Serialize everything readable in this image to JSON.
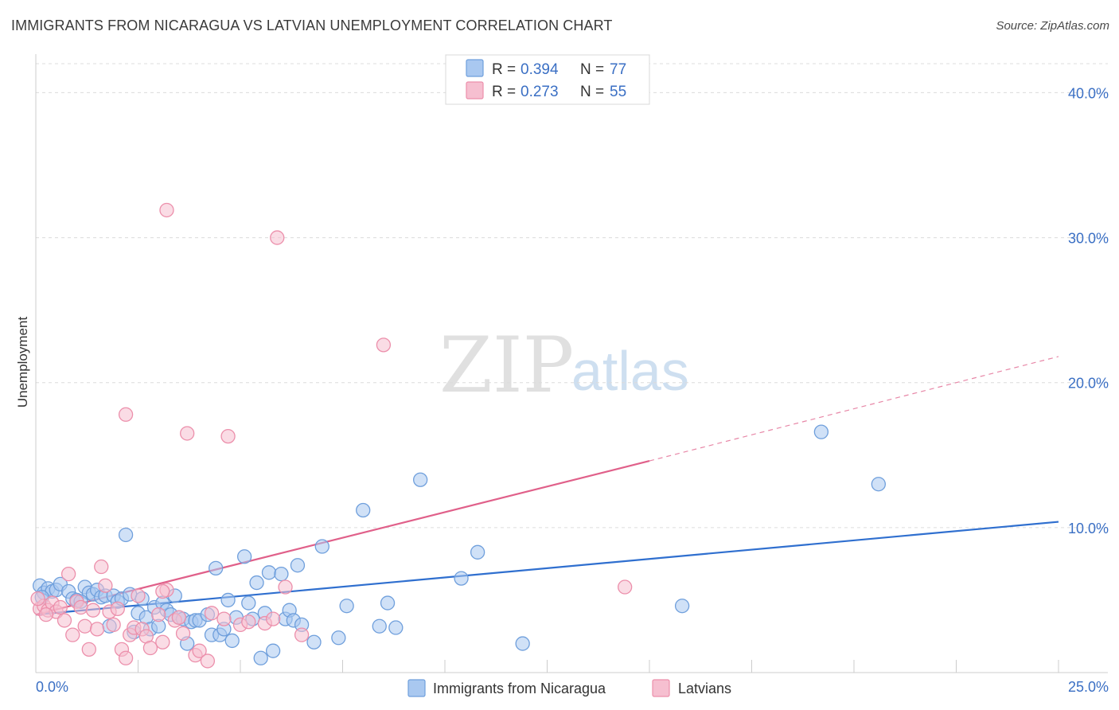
{
  "title": "IMMIGRANTS FROM NICARAGUA VS LATVIAN UNEMPLOYMENT CORRELATION CHART",
  "source": "Source: ZipAtlas.com",
  "watermark": {
    "zip": "ZIP",
    "atlas": "atlas"
  },
  "colors": {
    "blue_fill": "#a9c8f0",
    "blue_stroke": "#6f9fdc",
    "blue_line": "#2f6fcf",
    "pink_fill": "#f6bfd0",
    "pink_stroke": "#ec8fab",
    "pink_line": "#e0608a",
    "grid": "#dcdcdc",
    "axis_text": "#3a6fc4"
  },
  "legend": {
    "rows": [
      {
        "r_label": "R =",
        "r_value": "0.394",
        "n_label": "N =",
        "n_value": "77"
      },
      {
        "r_label": "R =",
        "r_value": "0.273",
        "n_label": "N =",
        "n_value": "55"
      }
    ]
  },
  "chart_data": {
    "type": "scatter",
    "title": "IMMIGRANTS FROM NICARAGUA VS LATVIAN UNEMPLOYMENT CORRELATION CHART",
    "xlabel": "",
    "ylabel": "Unemployment",
    "xlim": [
      0,
      25
    ],
    "ylim": [
      0,
      42
    ],
    "x_tick_labels": [
      "0.0%",
      "25.0%"
    ],
    "y_ticks": [
      10,
      20,
      30,
      40
    ],
    "y_tick_labels": [
      "10.0%",
      "20.0%",
      "30.0%",
      "40.0%"
    ],
    "grid": true,
    "legend_position": "top-center",
    "series": [
      {
        "name": "Immigrants from Nicaragua",
        "R": 0.394,
        "N": 77,
        "trend": {
          "x0": 0,
          "y0": 4.0,
          "x1": 25,
          "y1": 10.4
        },
        "points": [
          [
            0.1,
            6.0
          ],
          [
            0.2,
            5.5
          ],
          [
            0.3,
            5.8
          ],
          [
            0.4,
            5.6
          ],
          [
            0.5,
            5.7
          ],
          [
            0.6,
            6.1
          ],
          [
            0.8,
            5.6
          ],
          [
            0.9,
            5.1
          ],
          [
            1.0,
            5.0
          ],
          [
            1.2,
            5.9
          ],
          [
            1.3,
            5.5
          ],
          [
            1.4,
            5.4
          ],
          [
            1.5,
            5.7
          ],
          [
            1.6,
            5.2
          ],
          [
            1.7,
            5.3
          ],
          [
            1.8,
            3.2
          ],
          [
            1.9,
            5.3
          ],
          [
            2.0,
            4.9
          ],
          [
            2.1,
            5.1
          ],
          [
            2.2,
            9.5
          ],
          [
            2.3,
            5.4
          ],
          [
            2.4,
            2.8
          ],
          [
            2.5,
            4.1
          ],
          [
            2.6,
            5.1
          ],
          [
            2.7,
            3.8
          ],
          [
            2.8,
            3.0
          ],
          [
            2.9,
            4.5
          ],
          [
            3.0,
            3.2
          ],
          [
            3.1,
            4.8
          ],
          [
            3.2,
            4.3
          ],
          [
            3.3,
            4.0
          ],
          [
            3.4,
            5.3
          ],
          [
            3.5,
            3.8
          ],
          [
            3.6,
            3.7
          ],
          [
            3.7,
            2.0
          ],
          [
            3.8,
            3.5
          ],
          [
            3.9,
            3.6
          ],
          [
            4.0,
            3.6
          ],
          [
            4.2,
            4.0
          ],
          [
            4.3,
            2.6
          ],
          [
            4.4,
            7.2
          ],
          [
            4.5,
            2.6
          ],
          [
            4.6,
            3.0
          ],
          [
            4.7,
            5.0
          ],
          [
            4.8,
            2.2
          ],
          [
            4.9,
            3.8
          ],
          [
            5.1,
            8.0
          ],
          [
            5.2,
            4.8
          ],
          [
            5.3,
            3.7
          ],
          [
            5.4,
            6.2
          ],
          [
            5.5,
            1.0
          ],
          [
            5.6,
            4.1
          ],
          [
            5.7,
            6.9
          ],
          [
            5.8,
            1.5
          ],
          [
            6.0,
            6.8
          ],
          [
            6.1,
            3.7
          ],
          [
            6.2,
            4.3
          ],
          [
            6.3,
            3.6
          ],
          [
            6.4,
            7.4
          ],
          [
            6.5,
            3.3
          ],
          [
            6.8,
            2.1
          ],
          [
            7.0,
            8.7
          ],
          [
            7.4,
            2.4
          ],
          [
            7.6,
            4.6
          ],
          [
            8.0,
            11.2
          ],
          [
            8.4,
            3.2
          ],
          [
            8.6,
            4.8
          ],
          [
            8.8,
            3.1
          ],
          [
            9.4,
            13.3
          ],
          [
            10.4,
            6.5
          ],
          [
            10.8,
            8.3
          ],
          [
            11.9,
            2.0
          ],
          [
            15.8,
            4.6
          ],
          [
            19.2,
            16.6
          ],
          [
            20.6,
            13.0
          ],
          [
            0.15,
            5.2
          ],
          [
            1.1,
            4.9
          ]
        ]
      },
      {
        "name": "Latvians",
        "R": 0.273,
        "N": 55,
        "trend": {
          "x0": 0,
          "y0": 4.0,
          "x1": 15,
          "y1": 14.6,
          "dashed_to": {
            "x": 25,
            "y": 21.8
          }
        },
        "points": [
          [
            0.1,
            4.4
          ],
          [
            0.2,
            4.6
          ],
          [
            0.3,
            4.3
          ],
          [
            0.4,
            4.8
          ],
          [
            0.5,
            4.2
          ],
          [
            0.6,
            4.5
          ],
          [
            0.7,
            3.6
          ],
          [
            0.8,
            6.8
          ],
          [
            0.9,
            2.6
          ],
          [
            1.0,
            4.9
          ],
          [
            1.1,
            4.5
          ],
          [
            1.2,
            3.2
          ],
          [
            1.3,
            1.6
          ],
          [
            1.4,
            4.3
          ],
          [
            1.5,
            3.0
          ],
          [
            1.6,
            7.3
          ],
          [
            1.7,
            6.0
          ],
          [
            1.8,
            4.2
          ],
          [
            1.9,
            3.3
          ],
          [
            2.0,
            4.4
          ],
          [
            2.1,
            1.6
          ],
          [
            2.2,
            1.0
          ],
          [
            2.2,
            17.8
          ],
          [
            2.3,
            2.6
          ],
          [
            2.4,
            3.1
          ],
          [
            2.5,
            5.3
          ],
          [
            2.6,
            3.0
          ],
          [
            2.7,
            2.5
          ],
          [
            2.8,
            1.7
          ],
          [
            3.0,
            4.0
          ],
          [
            3.1,
            2.1
          ],
          [
            3.2,
            5.7
          ],
          [
            3.2,
            31.9
          ],
          [
            3.4,
            3.6
          ],
          [
            3.5,
            3.8
          ],
          [
            3.6,
            2.7
          ],
          [
            3.7,
            16.5
          ],
          [
            3.9,
            1.2
          ],
          [
            4.0,
            1.5
          ],
          [
            4.2,
            0.8
          ],
          [
            4.3,
            4.1
          ],
          [
            4.6,
            3.7
          ],
          [
            4.7,
            16.3
          ],
          [
            5.0,
            3.3
          ],
          [
            5.2,
            3.5
          ],
          [
            5.6,
            3.4
          ],
          [
            5.8,
            3.7
          ],
          [
            5.9,
            30.0
          ],
          [
            6.1,
            5.9
          ],
          [
            6.5,
            2.6
          ],
          [
            8.5,
            22.6
          ],
          [
            14.4,
            5.9
          ],
          [
            0.05,
            5.1
          ],
          [
            0.25,
            4.0
          ],
          [
            3.1,
            5.6
          ]
        ]
      }
    ]
  },
  "bottom_legend": {
    "items": [
      {
        "label": "Immigrants from Nicaragua"
      },
      {
        "label": "Latvians"
      }
    ]
  }
}
